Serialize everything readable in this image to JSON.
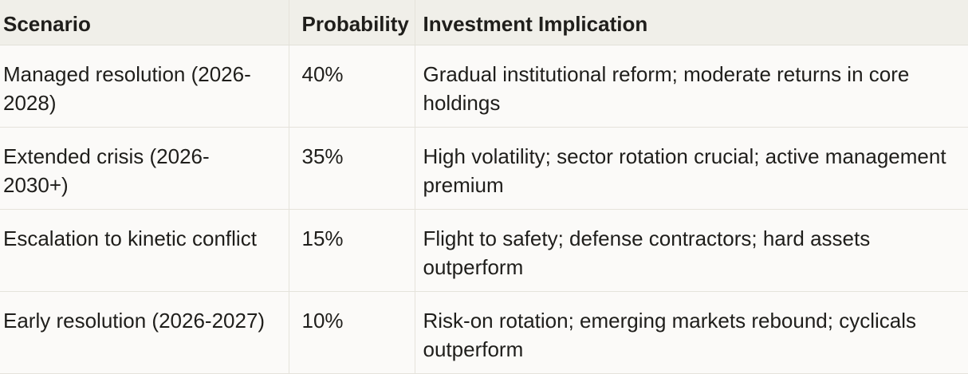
{
  "table": {
    "columns": [
      {
        "label": "Scenario"
      },
      {
        "label": "Probability"
      },
      {
        "label": "Investment Implication"
      }
    ],
    "rows": [
      {
        "scenario": "Managed resolution (2026-2028)",
        "probability": "40%",
        "implication": "Gradual institutional reform; moderate returns in core holdings"
      },
      {
        "scenario": "Extended crisis (2026-2030+)",
        "probability": "35%",
        "implication": "High volatility; sector rotation crucial; active management premium"
      },
      {
        "scenario": "Escalation to kinetic conflict",
        "probability": "15%",
        "implication": "Flight to safety; defense contractors; hard assets outperform"
      },
      {
        "scenario": "Early resolution (2026-2027)",
        "probability": "10%",
        "implication": "Risk-on rotation; emerging markets rebound; cyclicals outperform"
      }
    ],
    "colors": {
      "header_background": "#f0efe9",
      "row_background": "#fbfaf8",
      "border": "#e5e3db",
      "text": "#1f1e1b"
    }
  }
}
